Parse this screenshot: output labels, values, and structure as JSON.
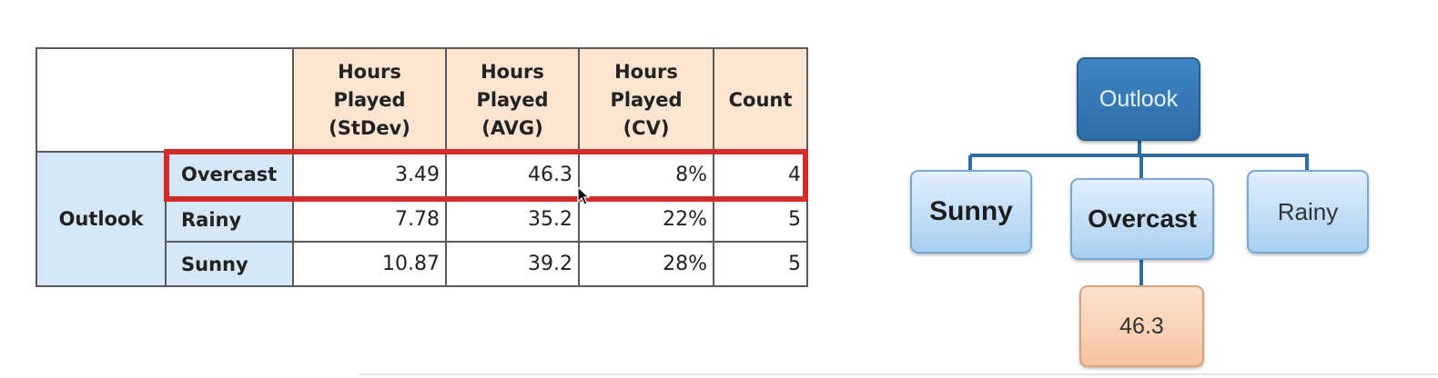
{
  "table": {
    "headers": [
      "Hours Played (StDev)",
      "Hours Played (AVG)",
      "Hours Played (CV)",
      "Count"
    ],
    "header_lines": [
      [
        "Hours",
        "Played",
        "(StDev)"
      ],
      [
        "Hours",
        "Played",
        "(AVG)"
      ],
      [
        "Hours",
        "Played",
        "(CV)"
      ],
      [
        "Count"
      ]
    ],
    "group_label": "Outlook",
    "rows": [
      {
        "category": "Overcast",
        "stdev": "3.49",
        "avg": "46.3",
        "cv": "8%",
        "count": "4",
        "highlighted": true
      },
      {
        "category": "Rainy",
        "stdev": "7.78",
        "avg": "35.2",
        "cv": "22%",
        "count": "5",
        "highlighted": false
      },
      {
        "category": "Sunny",
        "stdev": "10.87",
        "avg": "39.2",
        "cv": "28%",
        "count": "5",
        "highlighted": false
      }
    ]
  },
  "tree": {
    "root": "Outlook",
    "children": [
      "Sunny",
      "Overcast",
      "Rainy"
    ],
    "leaf": "46.3"
  },
  "colors": {
    "highlight": "#d32a2a",
    "header_fill": "#fbe5d0",
    "category_fill": "#d6e8f8",
    "root_fill": "#2c6ea9",
    "child_fill": "#a9cff1",
    "leaf_fill": "#f5c39f"
  },
  "icons": {
    "cursor": "mouse-pointer-icon"
  }
}
